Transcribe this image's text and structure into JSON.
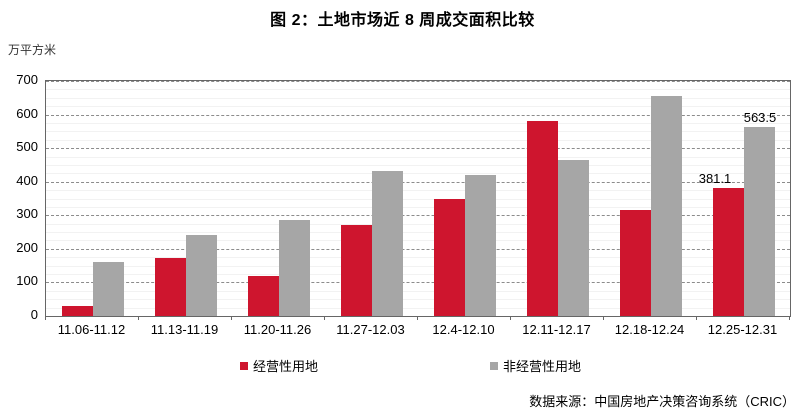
{
  "source": "数据来源：中国房地产决策咨询系统（CRIC）",
  "chart_data": {
    "type": "bar",
    "title": "图 2：土地市场近 8 周成交面积比较",
    "ylabel": "万平方米",
    "xlabel": "",
    "categories": [
      "11.06-11.12",
      "11.13-11.19",
      "11.20-11.26",
      "11.27-12.03",
      "12.4-12.10",
      "12.11-12.17",
      "12.18-12.24",
      "12.25-12.31"
    ],
    "series": [
      {
        "name": "经营性用地",
        "color": "#ce152e",
        "values": [
          30,
          172,
          120,
          270,
          349,
          580,
          315,
          381.1
        ]
      },
      {
        "name": "非经营性用地",
        "color": "#a6a6a6",
        "values": [
          160,
          240,
          286,
          432,
          419,
          464,
          656,
          563.5
        ]
      }
    ],
    "data_labels": [
      {
        "series": 0,
        "category_index": 7,
        "text": "381.1"
      },
      {
        "series": 1,
        "category_index": 7,
        "text": "563.5"
      }
    ],
    "ylim": [
      0,
      700
    ],
    "y_tick_step": 100,
    "y_minor_step": 25,
    "grid": "horizontal-major-dashed-with-faint-minor",
    "legend_position": "bottom"
  }
}
